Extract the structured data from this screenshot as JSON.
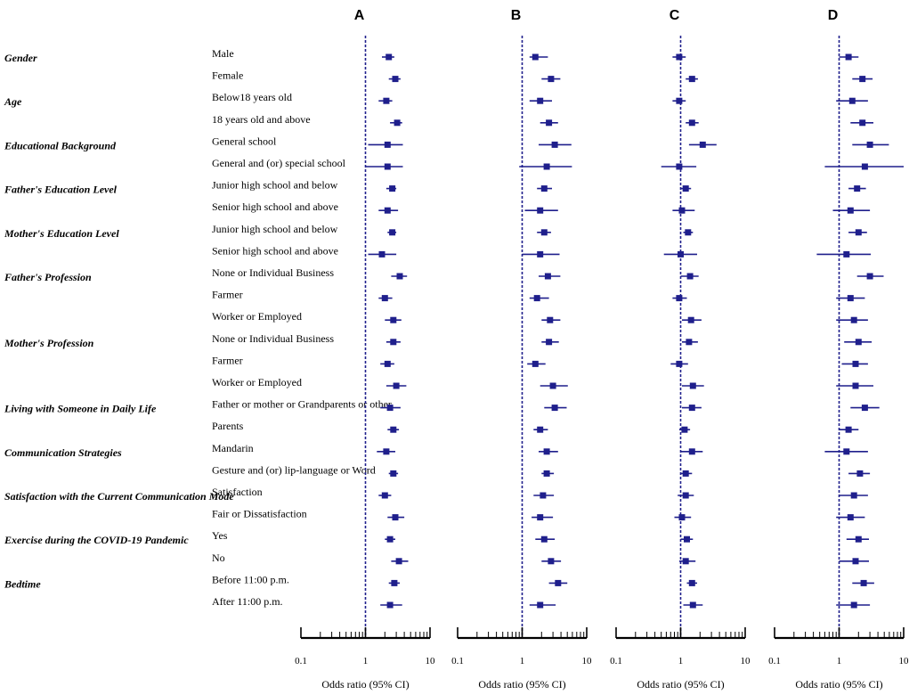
{
  "chart_data": {
    "type": "forest",
    "scale": "log",
    "xlim": [
      0.1,
      10
    ],
    "xticks": [
      "0.1",
      "1",
      "10"
    ],
    "xlabel": "Odds ratio (95% CI)",
    "reference_line": 1,
    "groups": [
      {
        "label": "Gender",
        "items": [
          "Male",
          "Female"
        ]
      },
      {
        "label": "Age",
        "items": [
          "Below18 years old",
          "18 years old and above"
        ]
      },
      {
        "label": "Educational Background",
        "items": [
          "General school",
          "General and (or) special school"
        ]
      },
      {
        "label": "Father's Education Level",
        "items": [
          "Junior high school and below",
          "Senior high school and above"
        ]
      },
      {
        "label": "Mother's Education Level",
        "items": [
          "Junior high school and below",
          "Senior high school and above"
        ]
      },
      {
        "label": "Father's Profession",
        "items": [
          "None or Individual Business",
          "Farmer",
          "Worker or Employed"
        ]
      },
      {
        "label": "Mother's Profession",
        "items": [
          "None or Individual Business",
          "Farmer",
          "Worker or Employed"
        ]
      },
      {
        "label": "Living with Someone in Daily Life",
        "items": [
          "Father or mother or Grandparents or other",
          "Parents"
        ]
      },
      {
        "label": "Communication Strategies",
        "items": [
          "Mandarin",
          "Gesture and (or) lip-language or Word"
        ]
      },
      {
        "label": "Satisfaction with the Current Communication Mode",
        "items": [
          "Satisfaction",
          "Fair or Dissatisfaction"
        ]
      },
      {
        "label": "Exercise during the COVID-19 Pandemic",
        "items": [
          "Yes",
          "No"
        ]
      },
      {
        "label": "Bedtime",
        "items": [
          "Before 11:00 p.m.",
          "After 11:00 p.m."
        ]
      }
    ],
    "panels": [
      {
        "label": "A",
        "or": [
          2.3,
          2.9,
          2.1,
          3.1,
          2.2,
          2.2,
          2.6,
          2.2,
          2.6,
          1.8,
          3.4,
          2.0,
          2.7,
          2.7,
          2.2,
          3.0,
          2.4,
          2.7,
          2.1,
          2.7,
          2.0,
          2.9,
          2.4,
          3.3,
          2.8,
          2.4
        ],
        "lo": [
          1.8,
          2.3,
          1.6,
          2.4,
          1.1,
          1.0,
          2.1,
          1.6,
          2.2,
          1.1,
          2.5,
          1.6,
          2.0,
          2.1,
          1.7,
          2.1,
          1.7,
          2.2,
          1.5,
          2.3,
          1.6,
          2.2,
          2.0,
          2.5,
          2.3,
          1.7
        ],
        "hi": [
          2.8,
          3.5,
          2.6,
          3.7,
          3.8,
          3.8,
          3.0,
          3.2,
          3.0,
          3.0,
          4.4,
          2.6,
          3.6,
          3.5,
          2.8,
          4.3,
          3.5,
          3.3,
          2.9,
          3.2,
          2.5,
          4.0,
          2.9,
          4.6,
          3.4,
          3.7
        ]
      },
      {
        "label": "B",
        "or": [
          1.6,
          2.8,
          1.9,
          2.6,
          3.2,
          2.4,
          2.2,
          1.9,
          2.2,
          1.9,
          2.5,
          1.7,
          2.7,
          2.6,
          1.6,
          3.0,
          3.2,
          1.9,
          2.4,
          2.4,
          2.1,
          1.9,
          2.2,
          2.8,
          3.6,
          1.9
        ],
        "lo": [
          1.3,
          2.0,
          1.3,
          1.9,
          1.8,
          0.9,
          1.7,
          1.1,
          1.7,
          1.0,
          1.8,
          1.3,
          2.0,
          2.0,
          1.2,
          1.9,
          2.2,
          1.5,
          1.8,
          2.0,
          1.5,
          1.4,
          1.6,
          2.0,
          2.6,
          1.3
        ],
        "hi": [
          2.5,
          3.9,
          2.9,
          3.6,
          5.8,
          5.9,
          2.9,
          3.6,
          2.8,
          3.8,
          3.9,
          2.6,
          3.9,
          3.7,
          2.3,
          5.1,
          4.9,
          2.5,
          3.6,
          3.1,
          3.1,
          3.0,
          3.2,
          4.0,
          5.0,
          3.3
        ]
      },
      {
        "label": "C",
        "or": [
          0.95,
          1.5,
          0.95,
          1.5,
          2.2,
          0.95,
          1.2,
          1.05,
          1.3,
          1.0,
          1.4,
          0.95,
          1.45,
          1.35,
          0.95,
          1.55,
          1.5,
          1.15,
          1.5,
          1.2,
          1.2,
          1.05,
          1.25,
          1.2,
          1.5,
          1.55
        ],
        "lo": [
          0.75,
          1.2,
          0.75,
          1.2,
          1.35,
          0.5,
          1.0,
          0.75,
          1.1,
          0.55,
          1.0,
          0.75,
          1.05,
          1.05,
          0.7,
          1.05,
          1.05,
          0.95,
          1.0,
          1.0,
          0.9,
          0.8,
          1.0,
          0.95,
          1.25,
          1.1
        ],
        "hi": [
          1.2,
          1.85,
          1.2,
          1.9,
          3.6,
          1.75,
          1.45,
          1.65,
          1.55,
          1.8,
          1.9,
          1.25,
          2.1,
          1.85,
          1.3,
          2.3,
          2.1,
          1.4,
          2.2,
          1.5,
          1.6,
          1.45,
          1.55,
          1.7,
          1.8,
          2.2
        ]
      },
      {
        "label": "D",
        "or": [
          1.4,
          2.3,
          1.6,
          2.3,
          3.0,
          2.5,
          1.9,
          1.5,
          2.0,
          1.3,
          3.0,
          1.5,
          1.7,
          2.0,
          1.8,
          1.8,
          2.5,
          1.4,
          1.3,
          2.1,
          1.7,
          1.5,
          2.0,
          1.8,
          2.4,
          1.7
        ],
        "lo": [
          1.0,
          1.6,
          0.9,
          1.5,
          1.6,
          0.6,
          1.4,
          0.8,
          1.4,
          0.45,
          1.9,
          0.9,
          0.9,
          1.2,
          1.1,
          0.9,
          1.5,
          1.0,
          0.6,
          1.4,
          1.0,
          0.9,
          1.3,
          1.0,
          1.6,
          0.9
        ],
        "hi": [
          2.0,
          3.3,
          2.8,
          3.4,
          5.9,
          10.0,
          2.6,
          3.0,
          2.7,
          3.1,
          4.9,
          2.5,
          2.8,
          3.2,
          2.8,
          3.4,
          4.2,
          2.0,
          2.8,
          3.0,
          2.8,
          2.5,
          2.9,
          2.9,
          3.5,
          3.0
        ]
      }
    ]
  }
}
